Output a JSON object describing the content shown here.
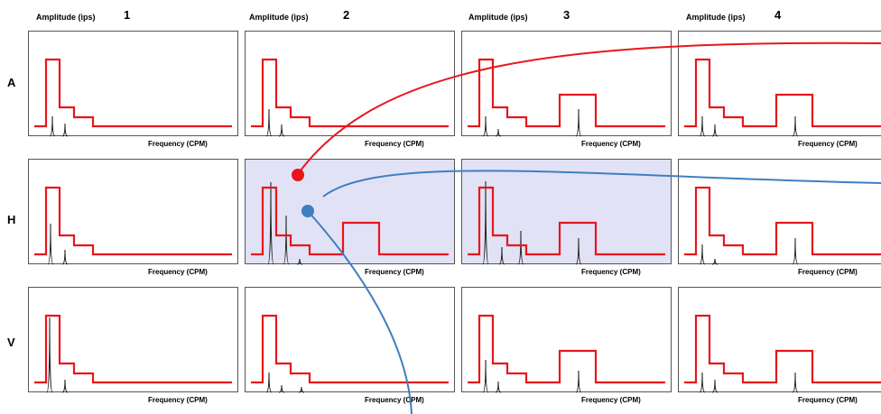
{
  "labels": {
    "amplitude": "Amplitude (ips)",
    "frequency": "Frequency (CPM)"
  },
  "columns": [
    "1",
    "2",
    "3",
    "4"
  ],
  "rows": [
    "A",
    "H",
    "V"
  ],
  "colors": {
    "envelope": "#e8161a",
    "spectrum": "#222222",
    "highlight": "#e2e2f6",
    "connector_red": "#e8161a",
    "connector_blue": "#3f7fbf",
    "border": "#555555"
  },
  "highlighted_panels": [
    [
      1,
      1
    ],
    [
      1,
      2
    ]
  ],
  "connectors": [
    {
      "color": "red",
      "from_panel": [
        1,
        1
      ],
      "to": "right-edge"
    },
    {
      "color": "blue",
      "from_panel": [
        1,
        1
      ],
      "to": "right-edge"
    },
    {
      "color": "blue",
      "from_panel": [
        1,
        1
      ],
      "to": "bottom-edge"
    }
  ]
}
